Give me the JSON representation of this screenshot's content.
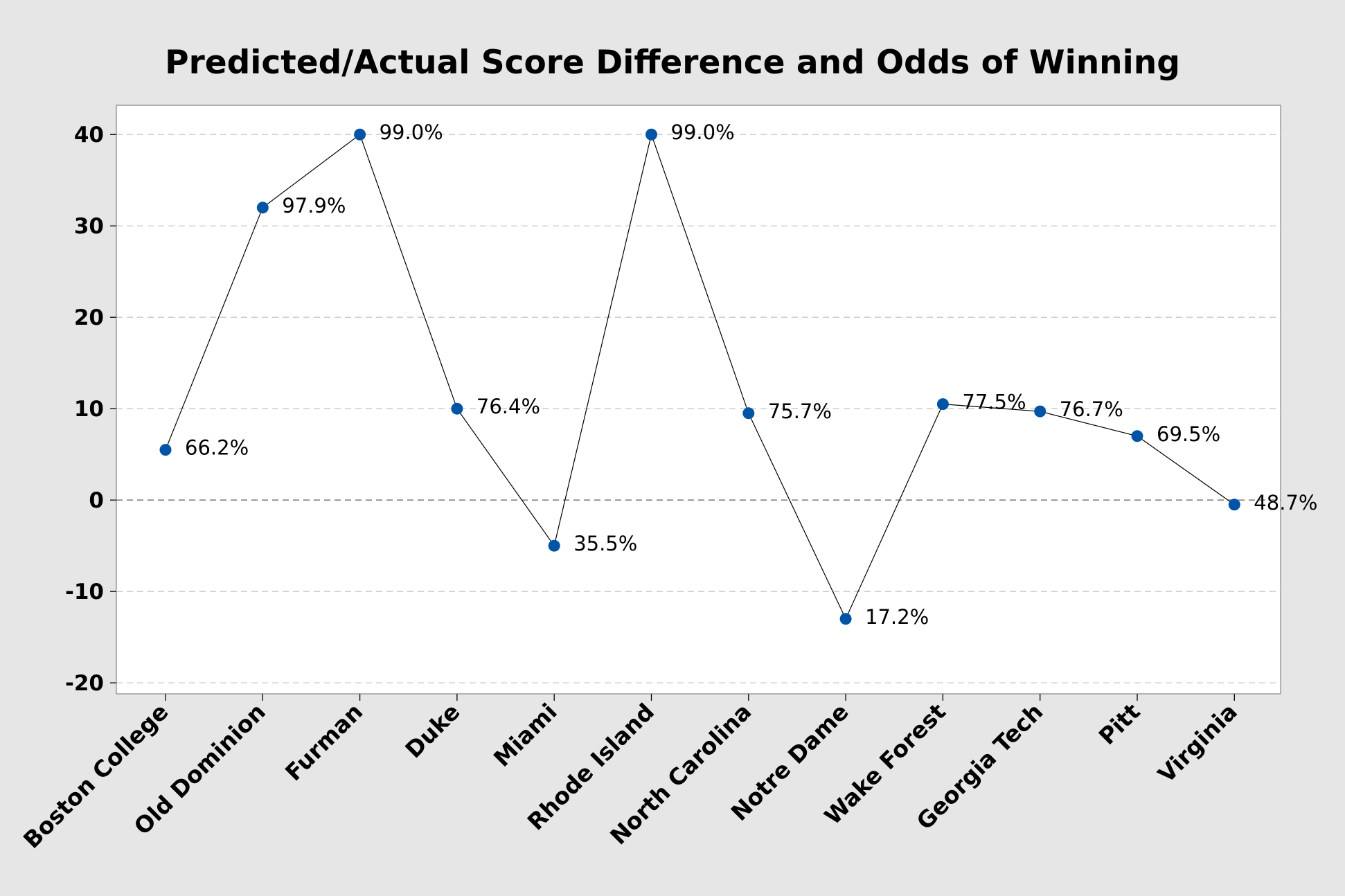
{
  "chart_data": {
    "type": "line",
    "title": "Predicted/Actual Score Difference and Odds of Winning",
    "xlabel": "",
    "ylabel": "",
    "categories": [
      "Boston College",
      "Old Dominion",
      "Furman",
      "Duke",
      "Miami",
      "Rhode Island",
      "North Carolina",
      "Notre Dame",
      "Wake Forest",
      "Georgia Tech",
      "Pitt",
      "Virginia"
    ],
    "series": [
      {
        "values": [
          5.5,
          32,
          40,
          10,
          -5,
          40,
          9.5,
          -13,
          10.5,
          9.7,
          7,
          -0.5
        ],
        "labels": [
          "66.2%",
          "97.9%",
          "99.0%",
          "76.4%",
          "35.5%",
          "99.0%",
          "75.7%",
          "17.2%",
          "77.5%",
          "76.7%",
          "69.5%",
          "48.7%"
        ]
      }
    ],
    "ylim": [
      -21.2,
      43.2
    ],
    "yticks": [
      -20,
      -10,
      0,
      10,
      20,
      30,
      40
    ],
    "reference_line": 0,
    "grid": "horizontal-dashed",
    "legend": "none",
    "colors": {
      "marker": "#0054a6",
      "line": "#000000",
      "grid": "#c8c8c8",
      "reference": "#808080",
      "background": "#e6e6e6",
      "plot_area": "#ffffff"
    }
  }
}
